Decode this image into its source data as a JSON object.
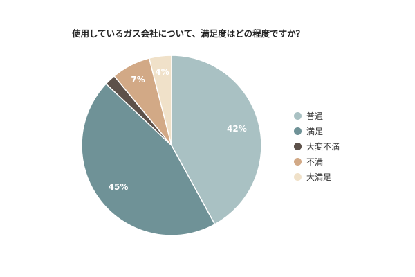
{
  "chart_data": {
    "type": "pie",
    "title": "使用しているガス会社について、満足度はどの程度ですか？",
    "slices": [
      {
        "label": "普通",
        "value": 42,
        "value_label": "42%",
        "color": "#a9c1c3"
      },
      {
        "label": "満足",
        "value": 45,
        "value_label": "45%",
        "color": "#6f9297"
      },
      {
        "label": "大変不満",
        "value": 2,
        "value_label": "",
        "color": "#5d514a"
      },
      {
        "label": "不満",
        "value": 7,
        "value_label": "7%",
        "color": "#d2a986"
      },
      {
        "label": "大満足",
        "value": 4,
        "value_label": "4%",
        "color": "#f0e1c9"
      }
    ],
    "start": "12 o'clock",
    "direction": "clockwise",
    "legend_position": "right",
    "label_color": "#ffffff"
  }
}
